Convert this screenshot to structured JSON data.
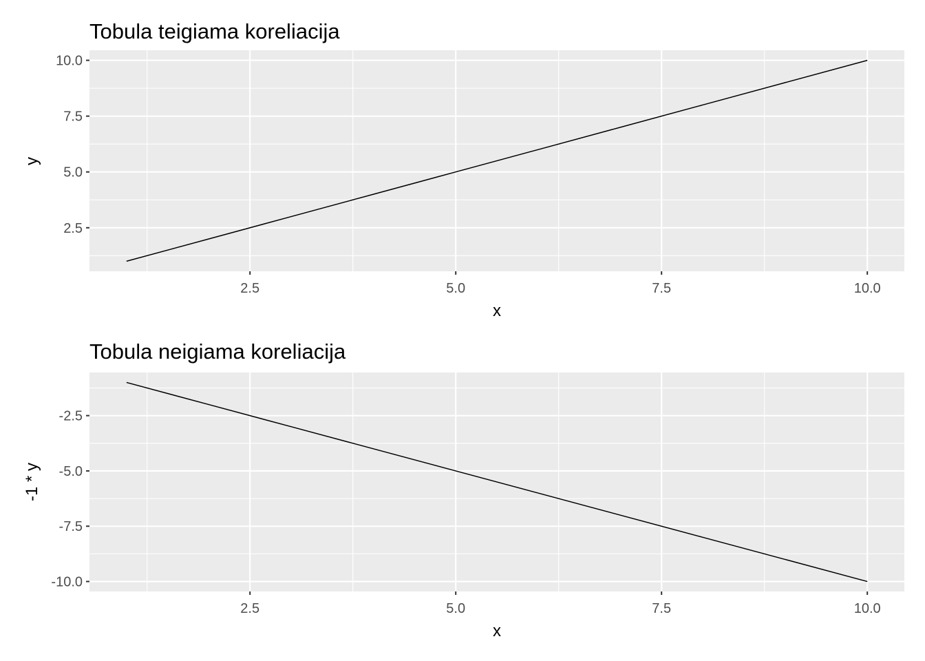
{
  "chart_data": [
    {
      "type": "line",
      "title": "Tobula teigiama koreliacija",
      "xlabel": "x",
      "ylabel": "y",
      "x": [
        1,
        2,
        3,
        4,
        5,
        6,
        7,
        8,
        9,
        10
      ],
      "series": [
        {
          "values": [
            1,
            2,
            3,
            4,
            5,
            6,
            7,
            8,
            9,
            10
          ],
          "color": "#000000"
        }
      ],
      "xlim": [
        0.55,
        10.45
      ],
      "ylim": [
        0.55,
        10.45
      ],
      "xticks": [
        2.5,
        5.0,
        7.5,
        10.0
      ],
      "xtick_labels": [
        "2.5",
        "5.0",
        "7.5",
        "10.0"
      ],
      "yticks": [
        2.5,
        5.0,
        7.5,
        10.0
      ],
      "ytick_labels": [
        "2.5",
        "5.0",
        "7.5",
        "10.0"
      ],
      "xminor": [
        1.25,
        3.75,
        6.25,
        8.75
      ],
      "yminor": [
        1.25,
        3.75,
        6.25,
        8.75
      ],
      "grid": true,
      "panel_color": "#EBEBEB",
      "grid_color": "#FFFFFF"
    },
    {
      "type": "line",
      "title": "Tobula neigiama koreliacija",
      "xlabel": "x",
      "ylabel": "-1 * y",
      "x": [
        1,
        2,
        3,
        4,
        5,
        6,
        7,
        8,
        9,
        10
      ],
      "series": [
        {
          "values": [
            -1,
            -2,
            -3,
            -4,
            -5,
            -6,
            -7,
            -8,
            -9,
            -10
          ],
          "color": "#000000"
        }
      ],
      "xlim": [
        0.55,
        10.45
      ],
      "ylim": [
        -10.45,
        -0.55
      ],
      "xticks": [
        2.5,
        5.0,
        7.5,
        10.0
      ],
      "xtick_labels": [
        "2.5",
        "5.0",
        "7.5",
        "10.0"
      ],
      "yticks": [
        -2.5,
        -5.0,
        -7.5,
        -10.0
      ],
      "ytick_labels": [
        "-2.5",
        "-5.0",
        "-7.5",
        "-10.0"
      ],
      "xminor": [
        1.25,
        3.75,
        6.25,
        8.75
      ],
      "yminor": [
        -1.25,
        -3.75,
        -6.25,
        -8.75
      ],
      "grid": true,
      "panel_color": "#EBEBEB",
      "grid_color": "#FFFFFF"
    }
  ]
}
